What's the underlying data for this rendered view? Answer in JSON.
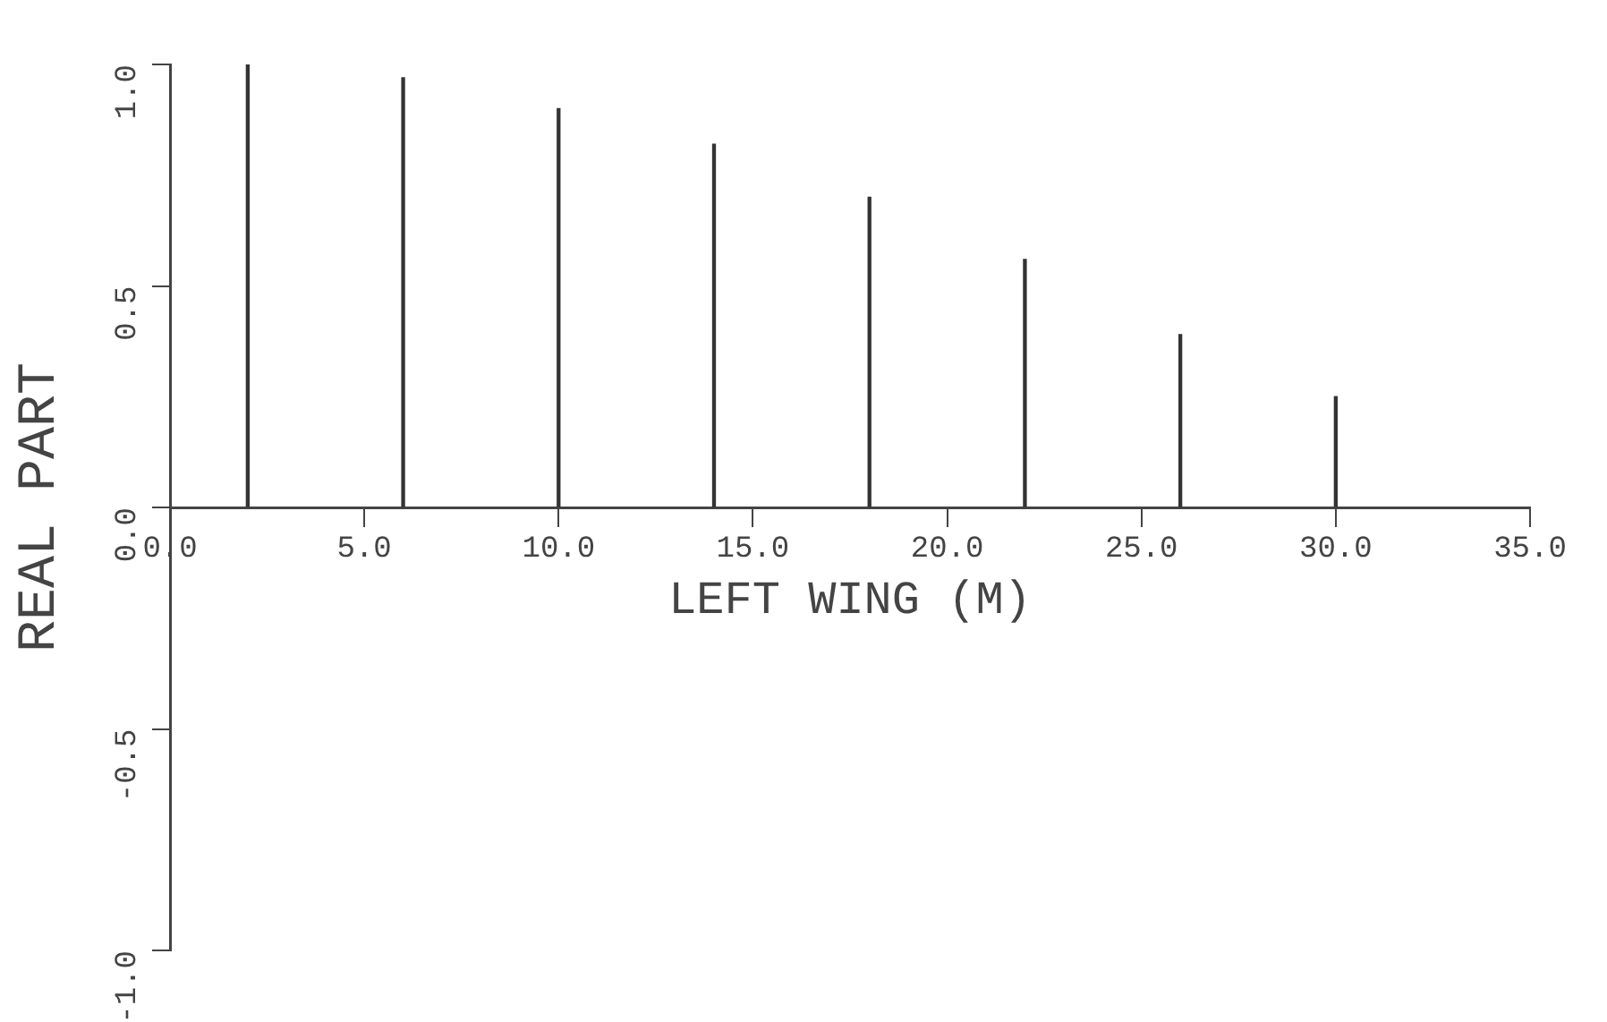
{
  "chart_data": {
    "type": "bar",
    "xlabel": "LEFT WING (M)",
    "ylabel": "REAL PART",
    "x": [
      2,
      6,
      10,
      14,
      18,
      22,
      26,
      30
    ],
    "values": [
      1.0,
      0.97,
      0.9,
      0.82,
      0.7,
      0.56,
      0.39,
      0.25
    ],
    "color": "#333333",
    "xlim": [
      0,
      35
    ],
    "xticks": [
      {
        "value": 0,
        "label": "0.0"
      },
      {
        "value": 5,
        "label": "5.0"
      },
      {
        "value": 10,
        "label": "10.0"
      },
      {
        "value": 15,
        "label": "15.0"
      },
      {
        "value": 20,
        "label": "20.0"
      },
      {
        "value": 25,
        "label": "25.0"
      },
      {
        "value": 30,
        "label": "30.0"
      },
      {
        "value": 35,
        "label": "35.0"
      }
    ],
    "ylim": [
      -1,
      1
    ],
    "yticks": [
      {
        "value": -1,
        "label": "-1.0"
      },
      {
        "value": -0.5,
        "label": "-0.5"
      },
      {
        "value": 0,
        "label": "0.0"
      },
      {
        "value": 0.5,
        "label": "0.5"
      },
      {
        "value": 1,
        "label": "1.0"
      }
    ],
    "grid": false,
    "legend": false
  }
}
